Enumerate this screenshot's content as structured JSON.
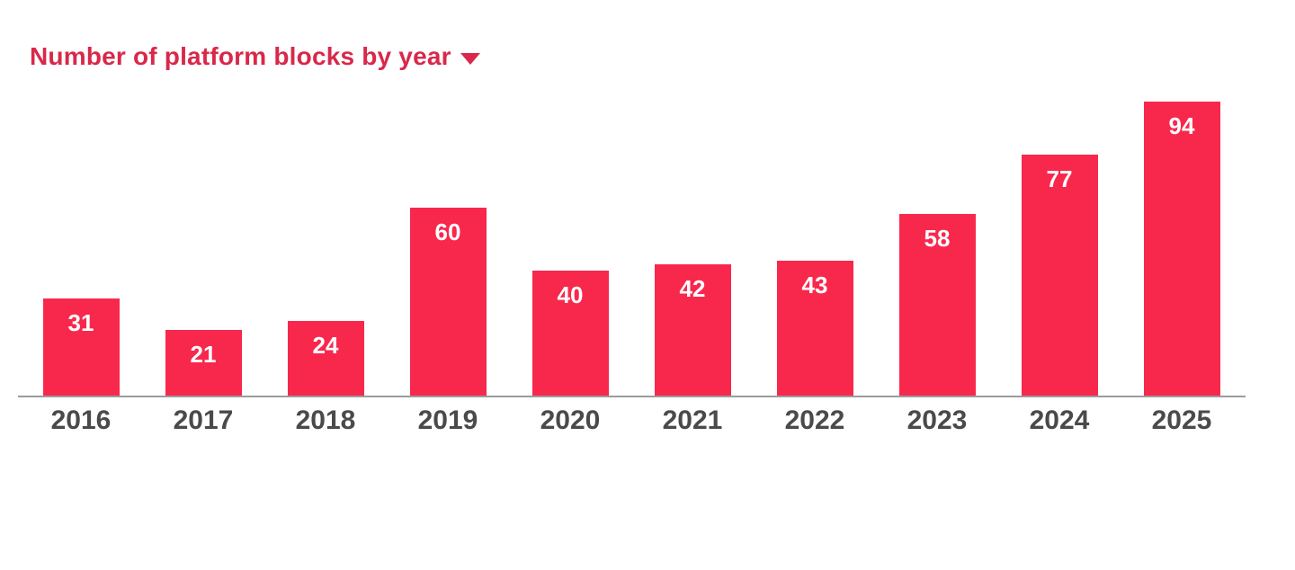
{
  "chart_data": {
    "type": "bar",
    "title": "Number of platform blocks by year",
    "categories": [
      "2016",
      "2017",
      "2018",
      "2019",
      "2020",
      "2021",
      "2022",
      "2023",
      "2024",
      "2025"
    ],
    "values": [
      31,
      21,
      24,
      60,
      40,
      42,
      43,
      58,
      77,
      94
    ],
    "xlabel": "",
    "ylabel": "",
    "ylim": [
      0,
      94
    ],
    "grid": false,
    "legend": false,
    "value_label_position": "inside-top"
  },
  "title_row": {
    "dropdown_icon": "caret-down"
  },
  "colors": {
    "bar": "#f8284d",
    "title": "#d9284a",
    "value_label": "#ffffff",
    "year_label": "#4a4a4a",
    "axis_line": "#9b9b9b",
    "background": "#ffffff"
  }
}
